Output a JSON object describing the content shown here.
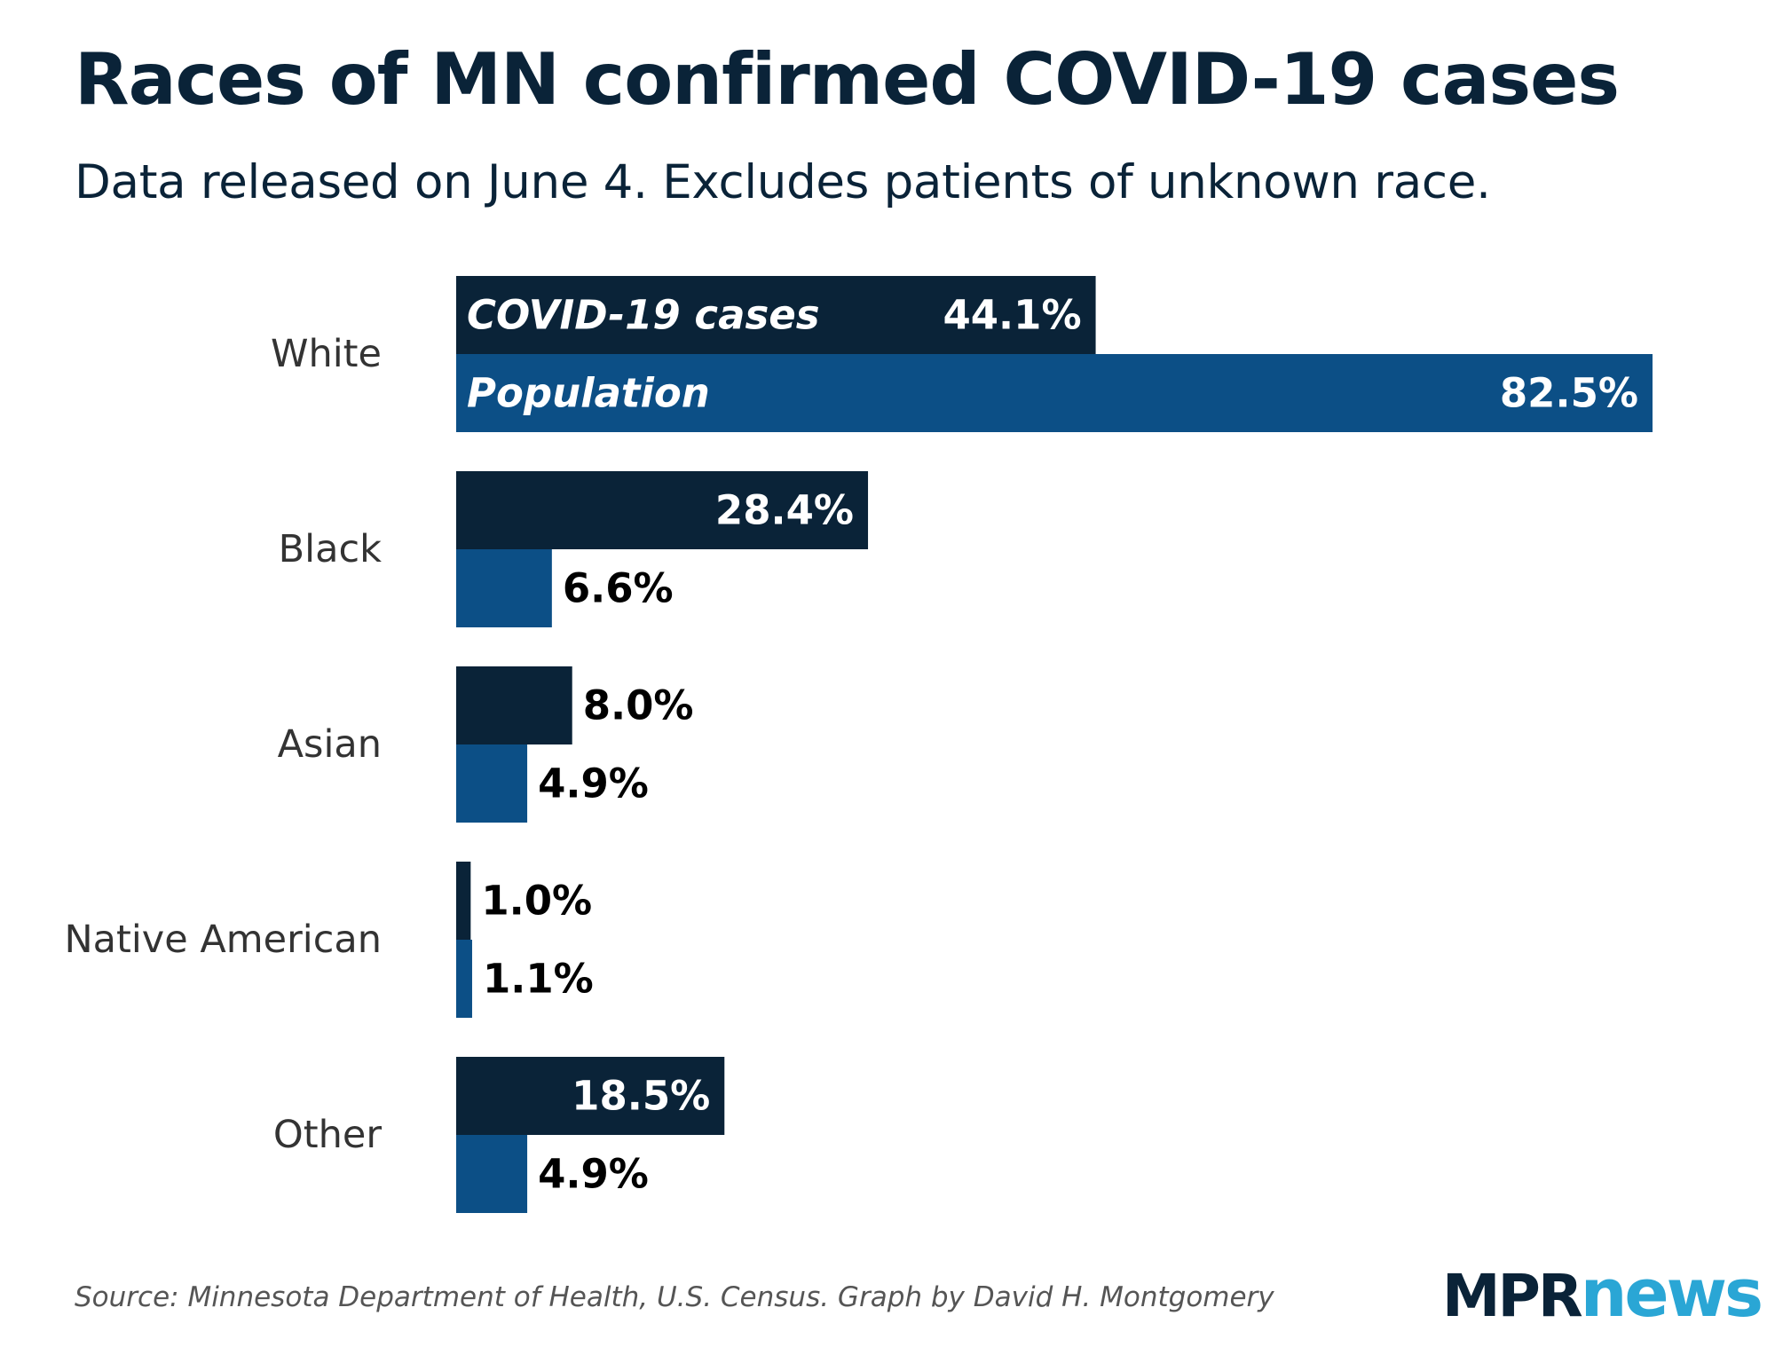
{
  "title": "Races of MN confirmed COVID-19 cases",
  "subtitle": "Data released on June 4. Excludes patients of unknown race.",
  "source": "Source: Minnesota Department of Health, U.S. Census. Graph by David H. Montgomery",
  "logo": {
    "part1": "MPR",
    "part2": "news"
  },
  "colors": {
    "covid_cases": "#0a2338",
    "population": "#0c4f86",
    "label_text": "#333333",
    "inside_value_text": "#ffffff",
    "outside_value_text": "#000000"
  },
  "chart_data": {
    "type": "bar",
    "orientation": "horizontal",
    "title": "Races of MN confirmed COVID-19 cases",
    "subtitle": "Data released on June 4. Excludes patients of unknown race.",
    "categories": [
      "White",
      "Black",
      "Asian",
      "Native American",
      "Other"
    ],
    "series": [
      {
        "name": "COVID-19 cases",
        "values": [
          44.1,
          28.4,
          8.0,
          1.0,
          18.5
        ],
        "labels": [
          "44.1%",
          "28.4%",
          "8.0%",
          "1.0%",
          "18.5%"
        ]
      },
      {
        "name": "Population",
        "values": [
          82.5,
          6.6,
          4.9,
          1.1,
          4.9
        ],
        "labels": [
          "82.5%",
          "6.6%",
          "4.9%",
          "1.1%",
          "4.9%"
        ]
      }
    ],
    "unit": "%",
    "xlim": [
      0,
      82.5
    ],
    "grid": false,
    "legend": "inline in first category bars"
  }
}
